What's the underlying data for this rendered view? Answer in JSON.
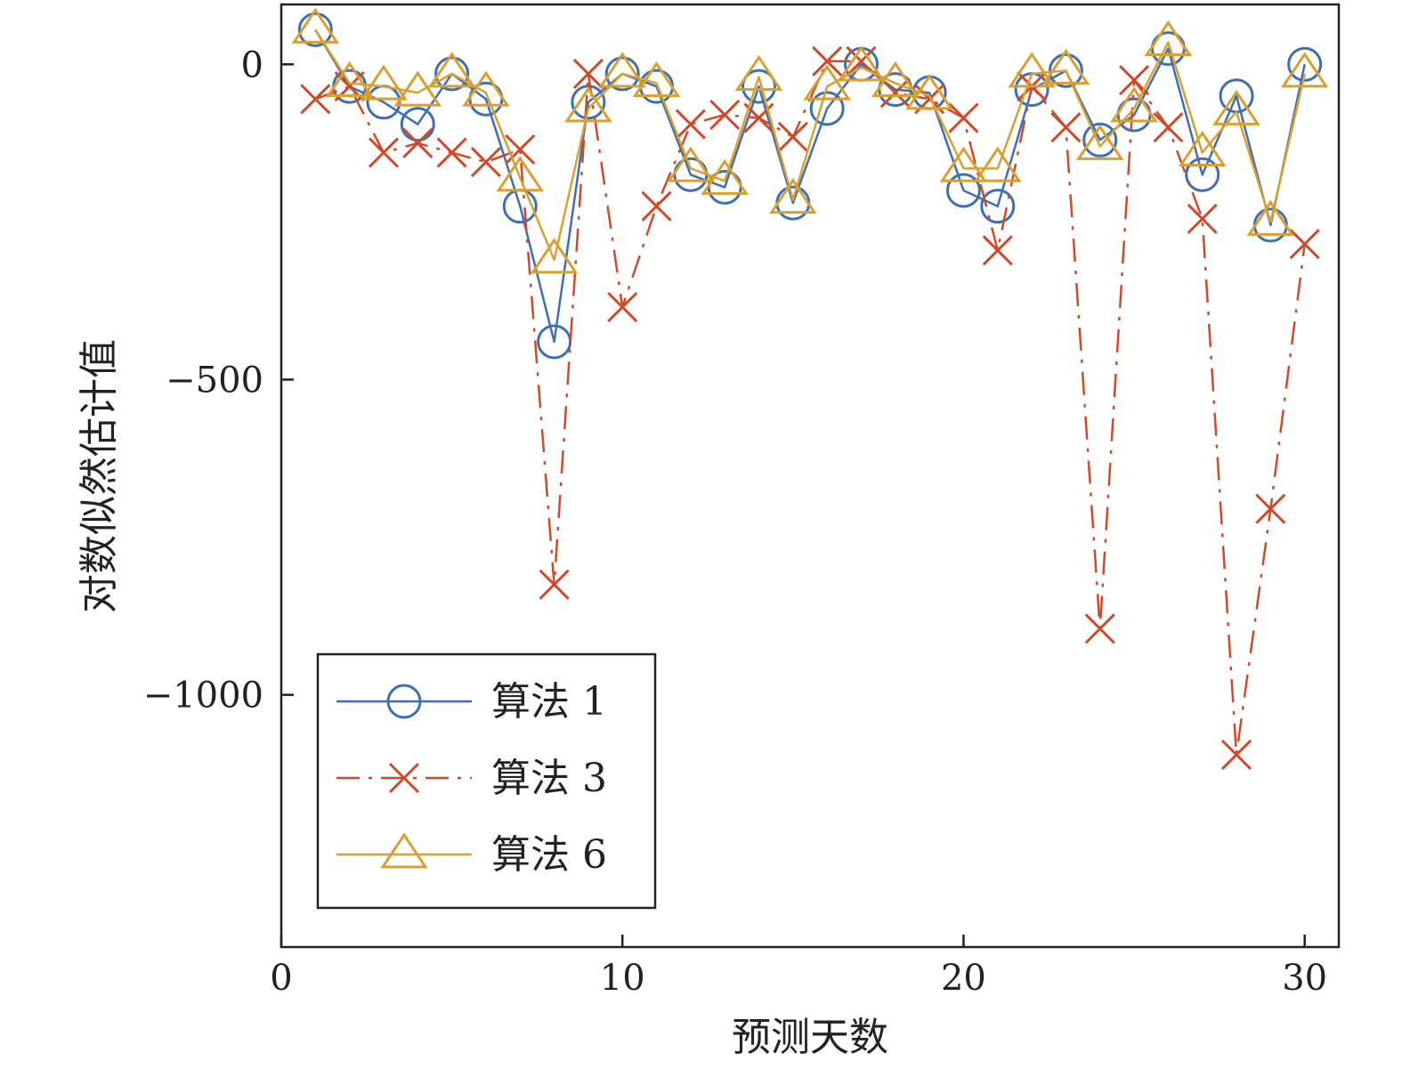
{
  "chart_data": {
    "type": "line",
    "title": "",
    "xlabel": "预测天数",
    "ylabel": "对数似然估计值",
    "xlim": [
      0,
      31
    ],
    "ylim": [
      -1400,
      95
    ],
    "xticks": [
      0,
      10,
      20,
      30
    ],
    "xtick_labels": [
      "0",
      "10",
      "20",
      "30"
    ],
    "yticks": [
      0,
      -500,
      -1000
    ],
    "ytick_labels": [
      "0",
      "−500",
      "−1000"
    ],
    "grid": false,
    "legend_position": "bottom-left",
    "x": [
      1,
      2,
      3,
      4,
      5,
      6,
      7,
      8,
      9,
      10,
      11,
      12,
      13,
      14,
      15,
      16,
      17,
      18,
      19,
      20,
      21,
      22,
      23,
      24,
      25,
      26,
      27,
      28,
      29,
      30
    ],
    "series": [
      {
        "name": "算法 1",
        "color": "#3d6fb5",
        "marker": "circle",
        "line_style": "solid",
        "values": [
          55,
          -35,
          -60,
          -95,
          -15,
          -55,
          -225,
          -440,
          -60,
          -15,
          -35,
          -175,
          -195,
          -35,
          -220,
          -70,
          0,
          -40,
          -45,
          -200,
          -225,
          -40,
          -10,
          -120,
          -80,
          25,
          -175,
          -50,
          -255,
          0
        ]
      },
      {
        "name": "算法 3",
        "color": "#cf4a2a",
        "marker": "x",
        "line_style": "dashdot",
        "values": [
          -55,
          -35,
          -140,
          -125,
          -140,
          -155,
          -135,
          -825,
          -15,
          -385,
          -225,
          -95,
          -80,
          -85,
          -115,
          5,
          5,
          -45,
          -55,
          -85,
          -295,
          -35,
          -100,
          -895,
          -25,
          -100,
          -245,
          -1095,
          -705,
          -285
        ]
      },
      {
        "name": "算法 6",
        "color": "#d8a030",
        "marker": "triangle",
        "line_style": "solid",
        "values": [
          55,
          -30,
          -35,
          -45,
          -15,
          -45,
          -180,
          -310,
          -70,
          -15,
          -30,
          -165,
          -185,
          -20,
          -215,
          -35,
          -5,
          -30,
          -50,
          -165,
          -165,
          -15,
          -10,
          -130,
          -70,
          35,
          -140,
          -75,
          -250,
          -15
        ]
      }
    ]
  }
}
